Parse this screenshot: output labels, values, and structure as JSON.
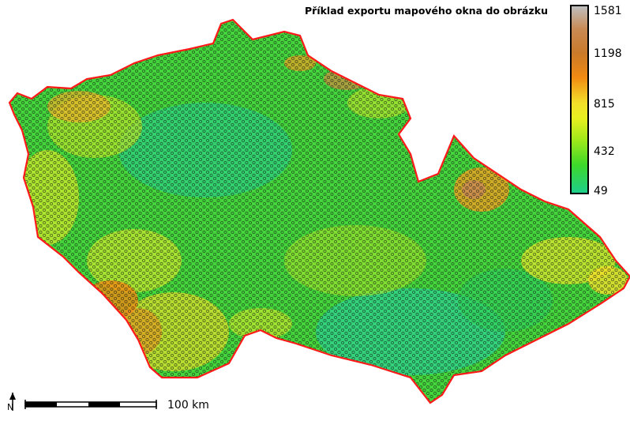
{
  "map": {
    "title": "Příklad exportu mapového okna do obrázku",
    "legend": {
      "values": [
        "1581",
        "1198",
        "815",
        "432",
        "49"
      ],
      "colors": [
        "#bfbfbf",
        "#c97a2a",
        "#f3e02a",
        "#3ed82a",
        "#1ecf8a"
      ]
    },
    "scalebar": {
      "label": "100 km"
    },
    "north_arrow": {
      "label": "N",
      "icon": "north-arrow-icon"
    },
    "colors": {
      "border": "#ff1a1a",
      "base": "#3fd63a",
      "points": "#111111"
    }
  }
}
